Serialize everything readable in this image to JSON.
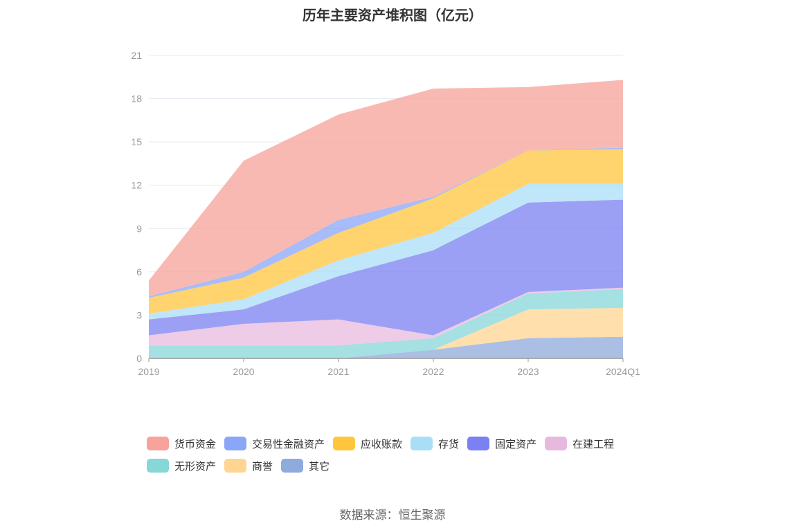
{
  "chart_data": {
    "type": "area",
    "stacked": true,
    "title": "历年主要资产堆积图（亿元）",
    "categories": [
      "2019",
      "2020",
      "2021",
      "2022",
      "2023",
      "2024Q1"
    ],
    "ylim": [
      0,
      21
    ],
    "yticks": [
      0,
      3,
      6,
      9,
      12,
      15,
      18,
      21
    ],
    "grid": true,
    "legend_position": "bottom",
    "series": [
      {
        "name": "其它",
        "color": "#8faadc",
        "values": [
          0.0,
          0.0,
          0.0,
          0.6,
          1.4,
          1.5
        ]
      },
      {
        "name": "商誉",
        "color": "#ffd591",
        "values": [
          0.0,
          0.0,
          0.0,
          0.0,
          2.0,
          2.0
        ]
      },
      {
        "name": "无形资产",
        "color": "#87d6d8",
        "values": [
          0.9,
          0.9,
          0.9,
          0.8,
          1.1,
          1.3
        ]
      },
      {
        "name": "在建工程",
        "color": "#e8b9df",
        "values": [
          0.7,
          1.5,
          1.8,
          0.2,
          0.1,
          0.1
        ]
      },
      {
        "name": "固定资产",
        "color": "#7b80f2",
        "values": [
          1.1,
          1.0,
          3.0,
          5.9,
          6.2,
          6.1
        ]
      },
      {
        "name": "存货",
        "color": "#a9def7",
        "values": [
          0.4,
          0.7,
          1.1,
          1.2,
          1.3,
          1.1
        ]
      },
      {
        "name": "应收账款",
        "color": "#ffc53d",
        "values": [
          1.1,
          1.5,
          1.9,
          2.4,
          2.3,
          2.4
        ]
      },
      {
        "name": "交易性金融资产",
        "color": "#8aa6f7",
        "values": [
          0.1,
          0.4,
          0.9,
          0.1,
          0.0,
          0.1
        ]
      },
      {
        "name": "货币资金",
        "color": "#f7a29a",
        "values": [
          1.1,
          7.7,
          7.3,
          7.5,
          4.4,
          4.7
        ]
      }
    ],
    "legend_order": [
      "货币资金",
      "交易性金融资产",
      "应收账款",
      "存货",
      "固定资产",
      "在建工程",
      "无形资产",
      "商誉",
      "其它"
    ]
  },
  "source": "数据来源：恒生聚源"
}
